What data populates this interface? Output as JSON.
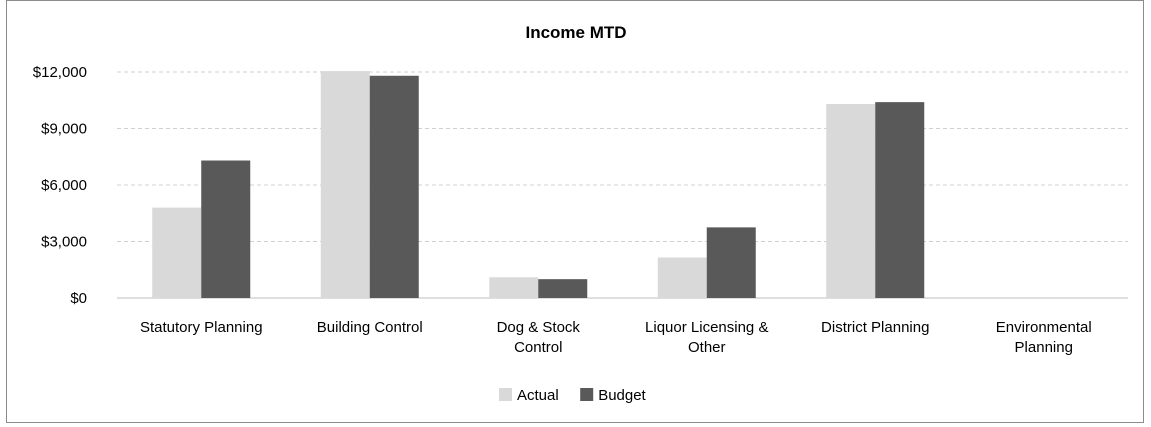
{
  "chart_data": {
    "type": "bar",
    "title": "Income MTD",
    "categories": [
      [
        "Statutory Planning"
      ],
      [
        "Building Control"
      ],
      [
        "Dog & Stock",
        "Control"
      ],
      [
        "Liquor Licensing &",
        "Other"
      ],
      [
        "District Planning"
      ],
      [
        "Environmental",
        "Planning"
      ]
    ],
    "series": [
      {
        "name": "Actual",
        "color": "#d9d9d9",
        "values": [
          4800,
          12050,
          1100,
          2150,
          10300,
          0
        ]
      },
      {
        "name": "Budget",
        "color": "#595959",
        "values": [
          7300,
          11800,
          1000,
          3750,
          10400,
          0
        ]
      }
    ],
    "ylim": [
      0,
      12000
    ],
    "yticks": [
      0,
      3000,
      6000,
      9000,
      12000
    ],
    "ytick_labels": [
      "$0",
      "$3,000",
      "$6,000",
      "$9,000",
      "$12,000"
    ],
    "grid": true,
    "legend_position": "bottom"
  }
}
